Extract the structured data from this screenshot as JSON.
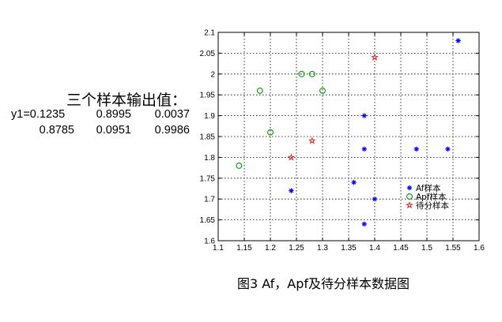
{
  "left_panel": {
    "title": "三个样本输出值：",
    "rows": [
      {
        "label": "y1=0.1235",
        "values": [
          "0.8995",
          "0.0037"
        ]
      },
      {
        "label": "0.8785",
        "values": [
          "0.0951",
          "0.9986"
        ]
      }
    ]
  },
  "caption": "图3   Af，Apf及待分样本数据图",
  "chart_data": {
    "type": "scatter",
    "title": "",
    "xlabel": "",
    "ylabel": "",
    "xlim": [
      1.1,
      1.6
    ],
    "ylim": [
      1.6,
      2.1
    ],
    "xticks": [
      "1.1",
      "1.15",
      "1.2",
      "1.25",
      "1.3",
      "1.35",
      "1.4",
      "1.45",
      "1.5",
      "1.55",
      "1.6"
    ],
    "yticks": [
      "1.6",
      "1.65",
      "1.7",
      "1.75",
      "1.8",
      "1.85",
      "1.9",
      "1.95",
      "2",
      "2.05",
      "2.1"
    ],
    "grid": true,
    "legend_position": "bottom-right",
    "series": [
      {
        "name": "Af样本",
        "marker": "asterisk",
        "color": "#0000ff",
        "points": [
          [
            1.24,
            1.72
          ],
          [
            1.36,
            1.74
          ],
          [
            1.38,
            1.64
          ],
          [
            1.38,
            1.82
          ],
          [
            1.38,
            1.9
          ],
          [
            1.4,
            1.7
          ],
          [
            1.48,
            1.82
          ],
          [
            1.54,
            1.82
          ],
          [
            1.56,
            2.08
          ]
        ]
      },
      {
        "name": "Apf样本",
        "marker": "circle",
        "color": "#00a000",
        "points": [
          [
            1.14,
            1.78
          ],
          [
            1.18,
            1.96
          ],
          [
            1.2,
            1.86
          ],
          [
            1.26,
            2.0
          ],
          [
            1.28,
            2.0
          ],
          [
            1.3,
            1.96
          ]
        ]
      },
      {
        "name": "待分样本",
        "marker": "star",
        "color": "#e02020",
        "points": [
          [
            1.24,
            1.8
          ],
          [
            1.28,
            1.84
          ],
          [
            1.4,
            2.04
          ]
        ]
      }
    ]
  }
}
